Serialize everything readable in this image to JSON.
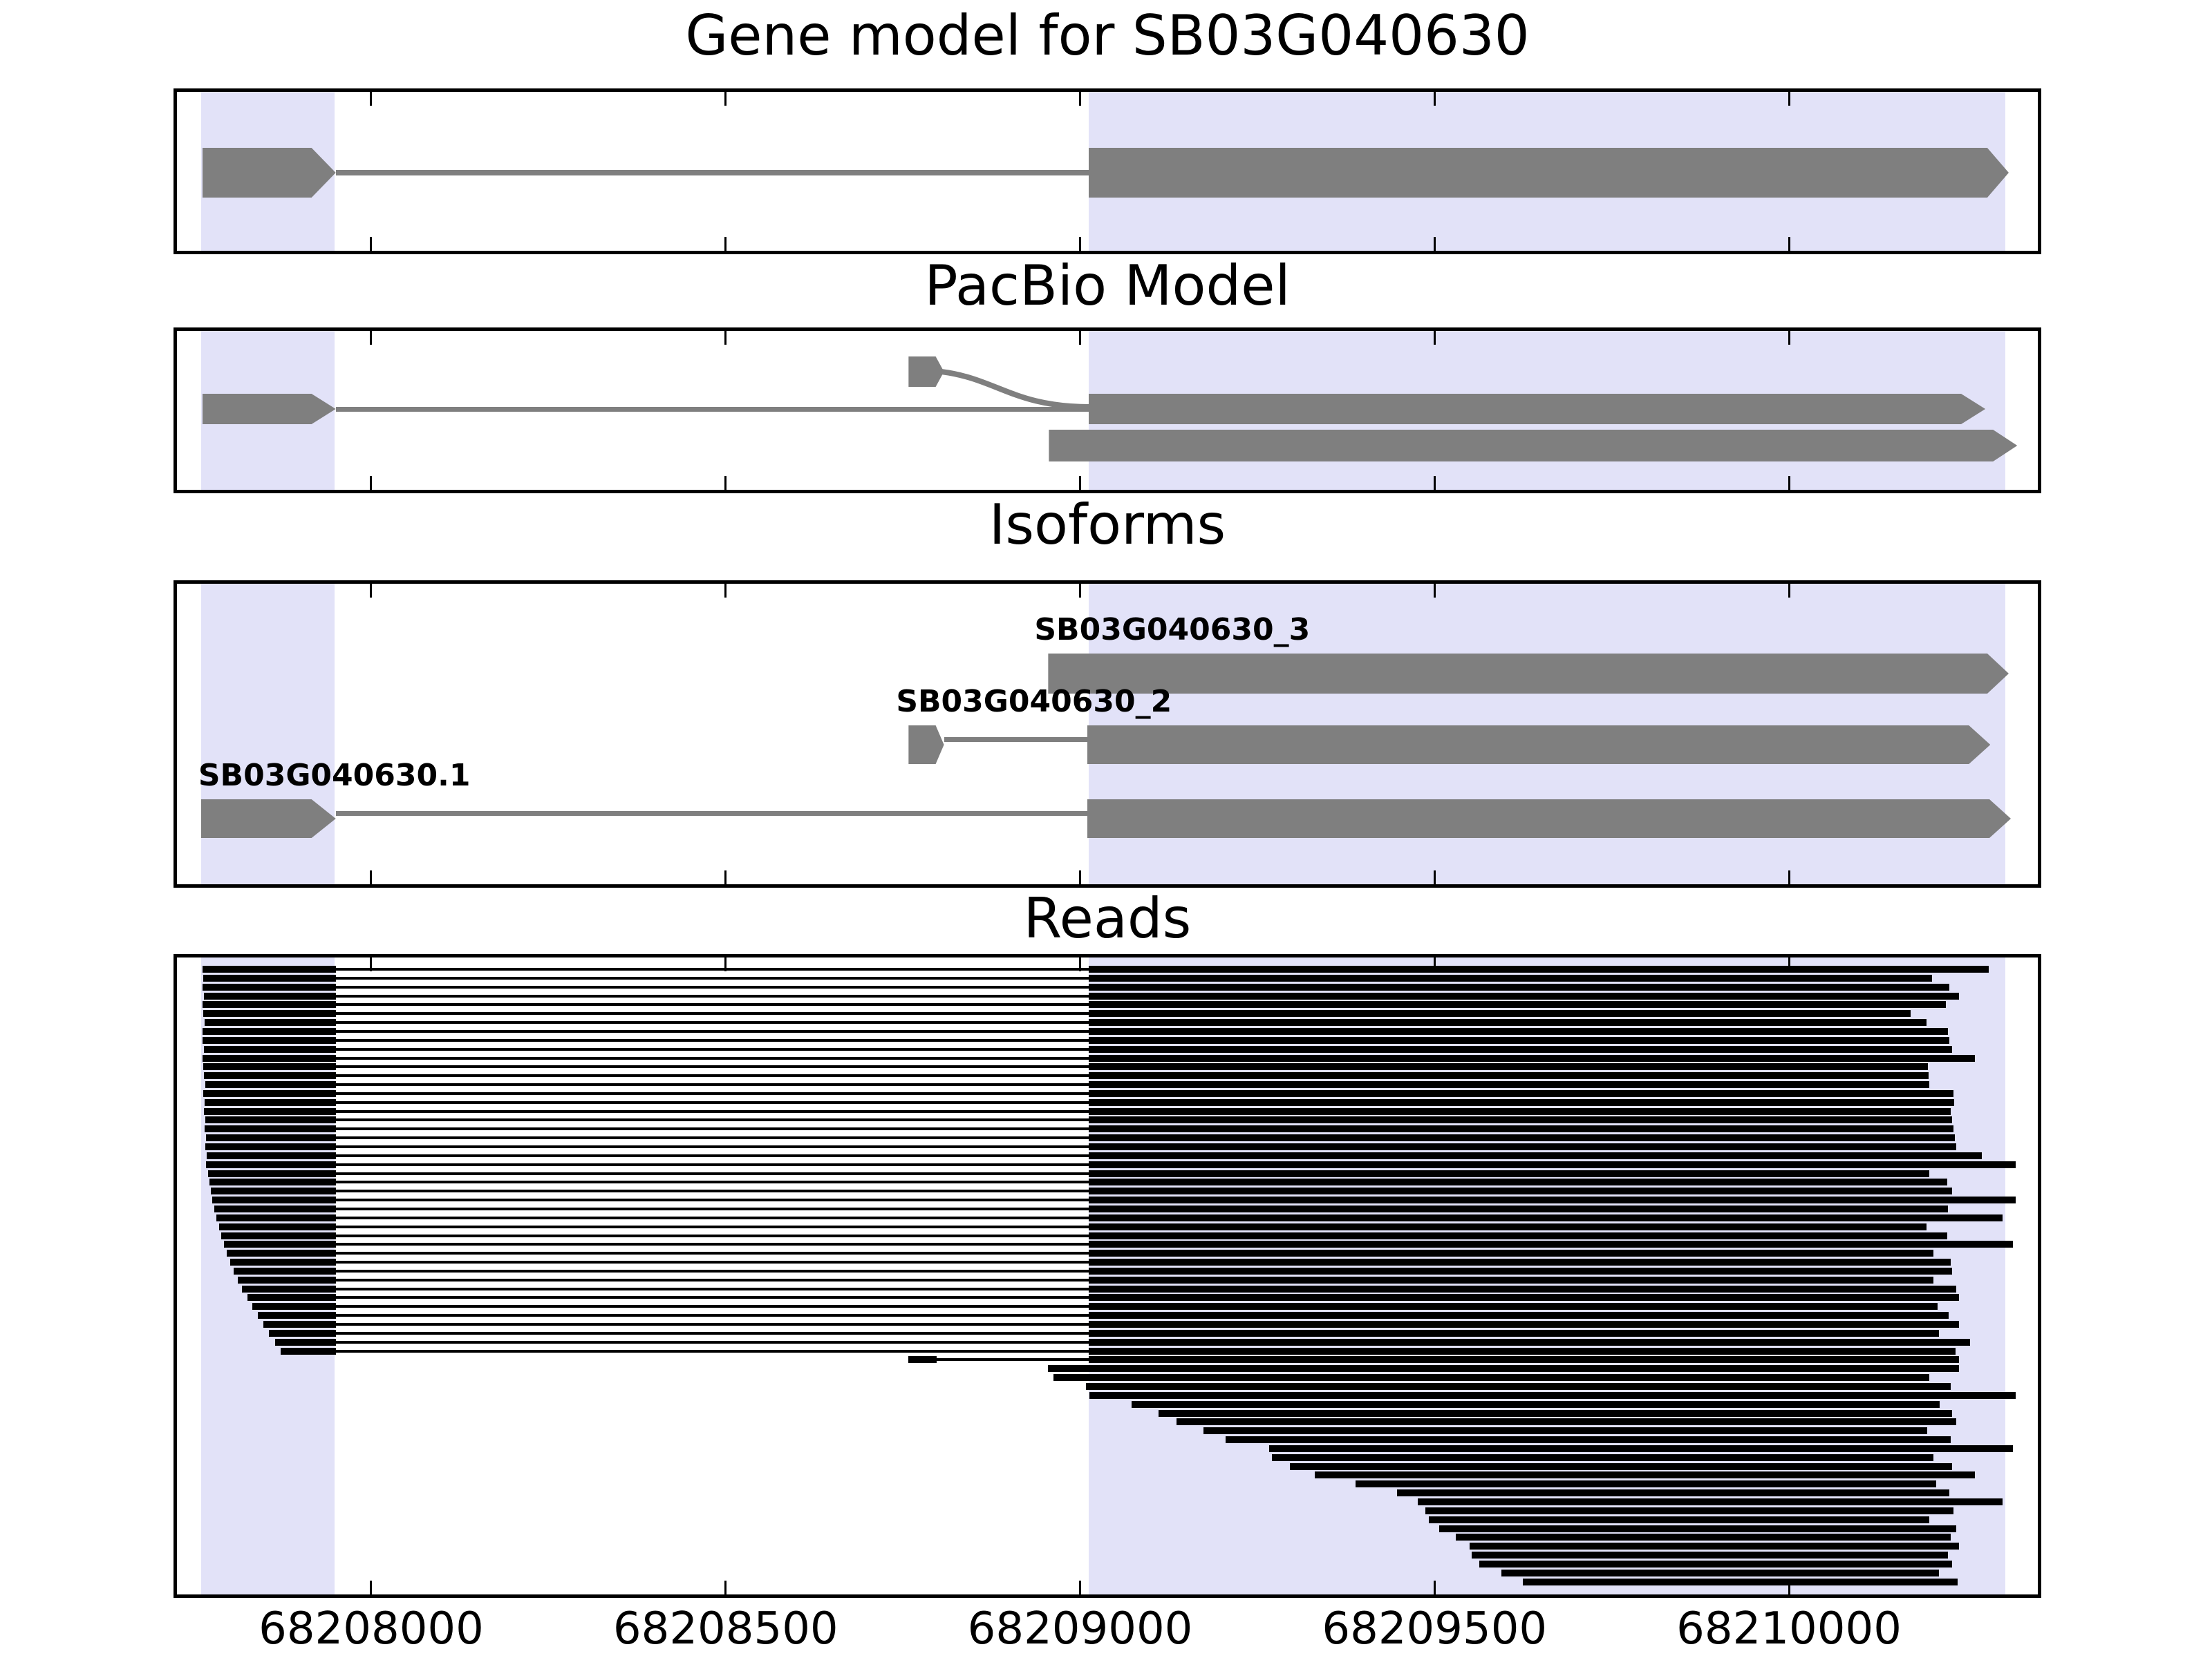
{
  "figure_title": "Gene model for SB03G040630",
  "colors": {
    "background": "#ffffff",
    "model_gray": "#7f7f7f",
    "read_black": "#000000",
    "exon_shade_lavender": "#e2e2f8",
    "panel_border": "#000000",
    "text": "#000000"
  },
  "chart_data": {
    "type": "other",
    "subtype": "genomic-track-plot",
    "title": "Gene model for SB03G040630",
    "xlabel": "",
    "ylabel": "",
    "grid": false,
    "axis": {
      "xmin": 68207726,
      "xmax": 68210351,
      "ticks": [
        68208000,
        68208500,
        68209000,
        68209500,
        68210000
      ],
      "tick_labels": [
        "68208000",
        "68208500",
        "68209000",
        "68209500",
        "68210000"
      ]
    },
    "shaded_exon_regions": [
      {
        "start": 68207760,
        "end": 68207948
      },
      {
        "start": 68209012,
        "end": 68210305
      }
    ],
    "panels": [
      {
        "id": "gene_model",
        "title": "Gene model for SB03G040630",
        "gene": {
          "exon1": {
            "start": 68207762,
            "end": 68207950,
            "tip": 34
          },
          "intron": {
            "start": 68207950,
            "end": 68209012
          },
          "exon2": {
            "start": 68209012,
            "end": 68210310,
            "tip": 30
          }
        }
      },
      {
        "id": "pacbio_model",
        "title": "PacBio Model",
        "transcripts": [
          {
            "name": "pacbio-transcript-upper",
            "exon1": {
              "start": 68207762,
              "end": 68207950,
              "tip": 34
            },
            "intron": {
              "start": 68207950,
              "end": 68209012
            },
            "small_exon": {
              "start": 68208758,
              "end": 68208808,
              "tip": 12
            },
            "has_splice_curve": true,
            "exon2": {
              "start": 68209012,
              "end": 68210277,
              "tip": 34
            }
          },
          {
            "name": "pacbio-transcript-lower",
            "exon": {
              "start": 68208956,
              "end": 68210322,
              "tip": 34
            }
          }
        ]
      },
      {
        "id": "isoforms",
        "title": "Isoforms",
        "isoforms": [
          {
            "label": "SB03G040630_3",
            "exon": {
              "start": 68208955,
              "end": 68210310,
              "tip": 30
            }
          },
          {
            "label": "SB03G040630_2",
            "small_exon": {
              "start": 68208758,
              "end": 68208808,
              "tip": 12
            },
            "intron": {
              "start": 68208808,
              "end": 68209010
            },
            "exon": {
              "start": 68209010,
              "end": 68210284,
              "tip": 30
            }
          },
          {
            "label": "SB03G040630.1",
            "exon1": {
              "start": 68207760,
              "end": 68207950,
              "tip": 34
            },
            "intron": {
              "start": 68207950,
              "end": 68209010
            },
            "exon2": {
              "start": 68209010,
              "end": 68210313,
              "tip": 30
            }
          }
        ]
      },
      {
        "id": "reads",
        "title": "Reads",
        "splice_model": {
          "exon1_end": 68207950,
          "exon2_start": 68209012,
          "small_exon": {
            "start": 68208758,
            "end": 68208798
          }
        },
        "reads": [
          {
            "s": 68207762,
            "e": 68210282,
            "t": "full"
          },
          {
            "s": 68207763,
            "e": 68210202,
            "t": "full"
          },
          {
            "s": 68207762,
            "e": 68210226,
            "t": "full"
          },
          {
            "s": 68207764,
            "e": 68210240,
            "t": "full"
          },
          {
            "s": 68207762,
            "e": 68210221,
            "t": "full"
          },
          {
            "s": 68207763,
            "e": 68210172,
            "t": "full"
          },
          {
            "s": 68207765,
            "e": 68210194,
            "t": "full"
          },
          {
            "s": 68207762,
            "e": 68210224,
            "t": "full"
          },
          {
            "s": 68207762,
            "e": 68210226,
            "t": "full"
          },
          {
            "s": 68207764,
            "e": 68210230,
            "t": "full"
          },
          {
            "s": 68207762,
            "e": 68210262,
            "t": "full"
          },
          {
            "s": 68207763,
            "e": 68210196,
            "t": "full"
          },
          {
            "s": 68207764,
            "e": 68210197,
            "t": "full"
          },
          {
            "s": 68207766,
            "e": 68210198,
            "t": "full"
          },
          {
            "s": 68207763,
            "e": 68210232,
            "t": "full"
          },
          {
            "s": 68207765,
            "e": 68210233,
            "t": "full"
          },
          {
            "s": 68207764,
            "e": 68210228,
            "t": "full"
          },
          {
            "s": 68207766,
            "e": 68210230,
            "t": "full"
          },
          {
            "s": 68207765,
            "e": 68210232,
            "t": "full"
          },
          {
            "s": 68207767,
            "e": 68210234,
            "t": "full"
          },
          {
            "s": 68207766,
            "e": 68210236,
            "t": "full"
          },
          {
            "s": 68207768,
            "e": 68210272,
            "t": "full"
          },
          {
            "s": 68207767,
            "e": 68210320,
            "t": "full"
          },
          {
            "s": 68207770,
            "e": 68210198,
            "t": "full"
          },
          {
            "s": 68207772,
            "e": 68210223,
            "t": "full"
          },
          {
            "s": 68207774,
            "e": 68210230,
            "t": "full"
          },
          {
            "s": 68207776,
            "e": 68210320,
            "t": "full"
          },
          {
            "s": 68207779,
            "e": 68210224,
            "t": "full"
          },
          {
            "s": 68207782,
            "e": 68210301,
            "t": "full"
          },
          {
            "s": 68207785,
            "e": 68210194,
            "t": "full"
          },
          {
            "s": 68207788,
            "e": 68210223,
            "t": "full"
          },
          {
            "s": 68207792,
            "e": 68210316,
            "t": "full"
          },
          {
            "s": 68207796,
            "e": 68210204,
            "t": "full"
          },
          {
            "s": 68207801,
            "e": 68210228,
            "t": "full"
          },
          {
            "s": 68207806,
            "e": 68210230,
            "t": "full"
          },
          {
            "s": 68207812,
            "e": 68210204,
            "t": "full"
          },
          {
            "s": 68207818,
            "e": 68210236,
            "t": "full"
          },
          {
            "s": 68207825,
            "e": 68210240,
            "t": "full"
          },
          {
            "s": 68207832,
            "e": 68210210,
            "t": "full"
          },
          {
            "s": 68207840,
            "e": 68210225,
            "t": "full"
          },
          {
            "s": 68207848,
            "e": 68210240,
            "t": "full"
          },
          {
            "s": 68207856,
            "e": 68210212,
            "t": "full"
          },
          {
            "s": 68207864,
            "e": 68210255,
            "t": "full"
          },
          {
            "s": 68207872,
            "e": 68210235,
            "t": "full"
          },
          {
            "s": 68208758,
            "e": 68210240,
            "t": "small"
          },
          {
            "s": 68208955,
            "e": 68210240,
            "t": "tail"
          },
          {
            "s": 68208962,
            "e": 68210198,
            "t": "tail"
          },
          {
            "s": 68209008,
            "e": 68210228,
            "t": "tail"
          },
          {
            "s": 68209013,
            "e": 68210320,
            "t": "tail"
          },
          {
            "s": 68209073,
            "e": 68210213,
            "t": "tail"
          },
          {
            "s": 68209111,
            "e": 68210230,
            "t": "tail"
          },
          {
            "s": 68209136,
            "e": 68210236,
            "t": "tail"
          },
          {
            "s": 68209174,
            "e": 68210195,
            "t": "tail"
          },
          {
            "s": 68209205,
            "e": 68210228,
            "t": "tail"
          },
          {
            "s": 68209267,
            "e": 68210316,
            "t": "tail"
          },
          {
            "s": 68209271,
            "e": 68210204,
            "t": "tail"
          },
          {
            "s": 68209296,
            "e": 68210230,
            "t": "tail"
          },
          {
            "s": 68209331,
            "e": 68210262,
            "t": "tail"
          },
          {
            "s": 68209389,
            "e": 68210208,
            "t": "tail"
          },
          {
            "s": 68209447,
            "e": 68210226,
            "t": "tail"
          },
          {
            "s": 68209476,
            "e": 68210301,
            "t": "tail"
          },
          {
            "s": 68209487,
            "e": 68210232,
            "t": "tail"
          },
          {
            "s": 68209492,
            "e": 68210198,
            "t": "tail"
          },
          {
            "s": 68209507,
            "e": 68210236,
            "t": "tail"
          },
          {
            "s": 68209530,
            "e": 68210228,
            "t": "tail"
          },
          {
            "s": 68209549,
            "e": 68210240,
            "t": "tail"
          },
          {
            "s": 68209552,
            "e": 68210224,
            "t": "tail"
          },
          {
            "s": 68209563,
            "e": 68210230,
            "t": "tail"
          },
          {
            "s": 68209594,
            "e": 68210212,
            "t": "tail"
          },
          {
            "s": 68209625,
            "e": 68210238,
            "t": "tail"
          }
        ]
      }
    ]
  }
}
